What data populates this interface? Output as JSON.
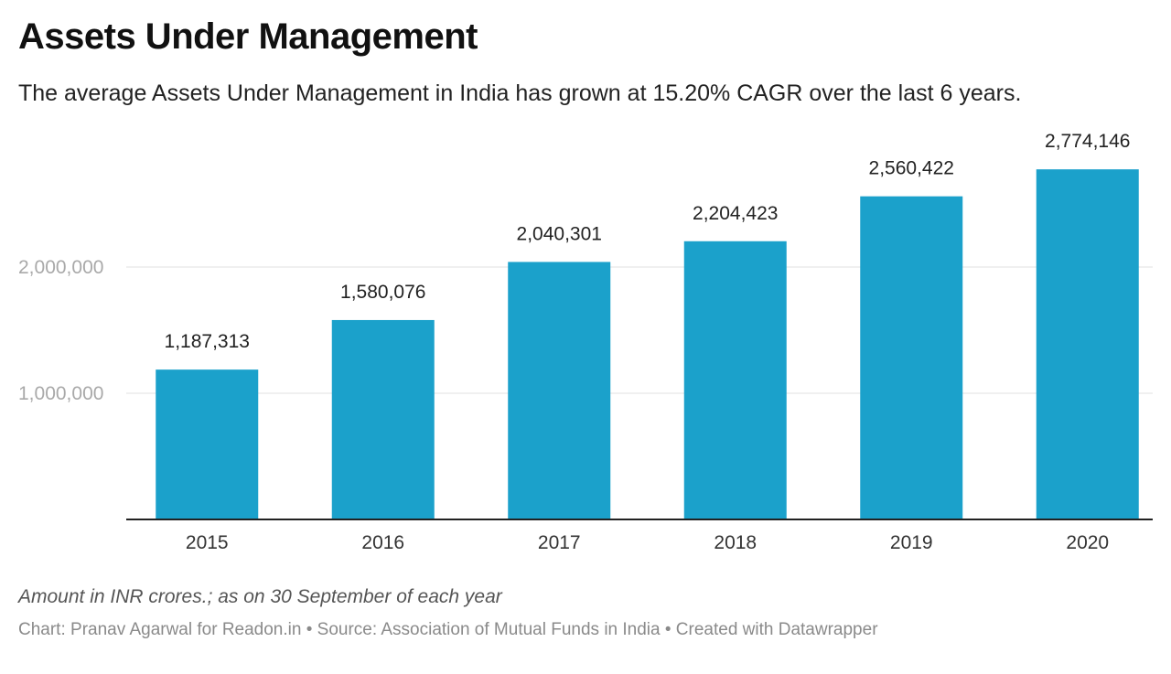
{
  "header": {
    "title": "Assets Under Management",
    "subtitle": "The average Assets Under Management in India has grown at 15.20% CAGR over the last 6 years."
  },
  "footer": {
    "note": "Amount in INR crores.; as on 30 September of each year",
    "source": "Chart: Pranav Agarwal for Readon.in • Source: Association of Mutual Funds in India • Created with Datawrapper"
  },
  "chart_data": {
    "type": "bar",
    "title": "Assets Under Management",
    "xlabel": "",
    "ylabel": "",
    "categories": [
      "2015",
      "2016",
      "2017",
      "2018",
      "2019",
      "2020"
    ],
    "values": [
      1187313,
      1580076,
      2040301,
      2204423,
      2560422,
      2774146
    ],
    "value_labels": [
      "1,187,313",
      "1,580,076",
      "2,040,301",
      "2,204,423",
      "2,560,422",
      "2,774,146"
    ],
    "yticks": [
      1000000,
      2000000
    ],
    "ytick_labels": [
      "1,000,000",
      "2,000,000"
    ],
    "ylim": [
      0,
      3000000
    ],
    "grid": true,
    "legend": "none",
    "bar_color": "#1ba1cb"
  }
}
